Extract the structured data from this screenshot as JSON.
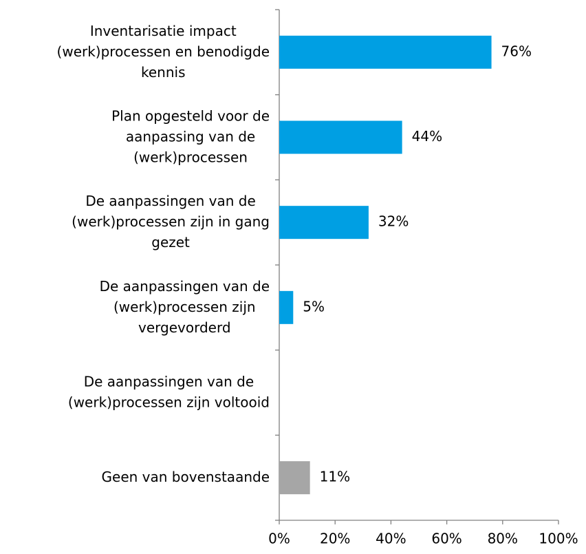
{
  "chart_data": {
    "type": "bar",
    "orientation": "horizontal",
    "categories": [
      "Inventarisatie impact\n(werk)processen en benodigde\nkennis",
      "Plan opgesteld voor de\naanpassing van de\n(werk)processen",
      "De aanpassingen van de\n(werk)processen zijn in gang\ngezet",
      "De aanpassingen van de\n(werk)processen zijn\nvergevorderd",
      "De aanpassingen van de\n(werk)processen zijn voltooid",
      "Geen van bovenstaande"
    ],
    "values": [
      76,
      44,
      32,
      5,
      null,
      11
    ],
    "value_labels": [
      "76%",
      "44%",
      "32%",
      "5%",
      null,
      "11%"
    ],
    "colors": [
      "#009fe3",
      "#009fe3",
      "#009fe3",
      "#009fe3",
      "#009fe3",
      "#a6a6a6"
    ],
    "xlim": [
      0,
      100
    ],
    "xticks": [
      {
        "value": 0,
        "label": "0%"
      },
      {
        "value": 20,
        "label": "20%"
      },
      {
        "value": 40,
        "label": "40%"
      },
      {
        "value": 60,
        "label": "60%"
      },
      {
        "value": 80,
        "label": "80%"
      },
      {
        "value": 100,
        "label": "100%"
      }
    ]
  }
}
